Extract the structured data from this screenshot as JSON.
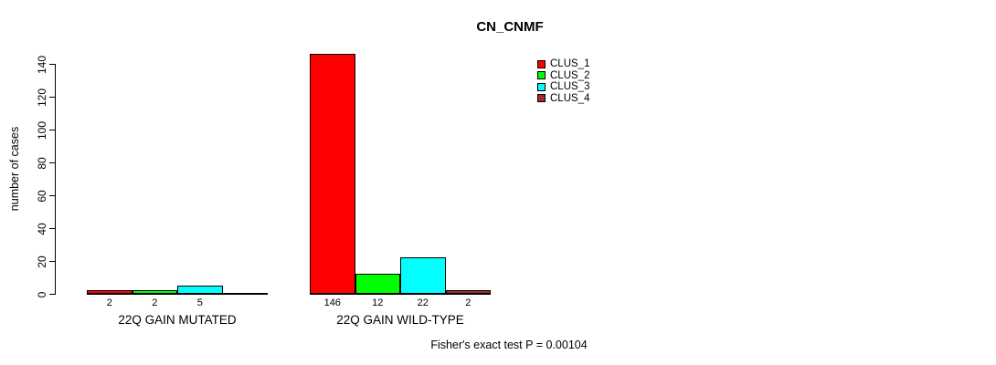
{
  "title": "CN_CNMF",
  "y_axis": {
    "label": "number of cases"
  },
  "footer": "Fisher's exact test P = 0.00104",
  "legend": {
    "entries": [
      {
        "label": "CLUS_1",
        "color": "#ff0000"
      },
      {
        "label": "CLUS_2",
        "color": "#00ff00"
      },
      {
        "label": "CLUS_3",
        "color": "#00ffff"
      },
      {
        "label": "CLUS_4",
        "color": "#a52a2a"
      }
    ]
  },
  "chart_data": {
    "type": "bar",
    "title": "CN_CNMF",
    "xlabel": "",
    "ylabel": "number of cases",
    "ylim": [
      0,
      140
    ],
    "yticks": [
      0,
      20,
      40,
      60,
      80,
      100,
      120,
      140
    ],
    "grid": false,
    "legend_position": "top-right",
    "categories": [
      "22Q GAIN MUTATED",
      "22Q GAIN WILD-TYPE"
    ],
    "series": [
      {
        "name": "CLUS_1",
        "color": "#ff0000",
        "values": [
          2,
          146
        ]
      },
      {
        "name": "CLUS_2",
        "color": "#00ff00",
        "values": [
          2,
          12
        ]
      },
      {
        "name": "CLUS_3",
        "color": "#00ffff",
        "values": [
          5,
          22
        ]
      },
      {
        "name": "CLUS_4",
        "color": "#a52a2a",
        "values": [
          0,
          2
        ]
      }
    ],
    "bar_value_labels": [
      [
        "2",
        "2",
        "5",
        ""
      ],
      [
        "146",
        "12",
        "22",
        "2"
      ]
    ],
    "annotation": "Fisher's exact test P = 0.00104"
  }
}
